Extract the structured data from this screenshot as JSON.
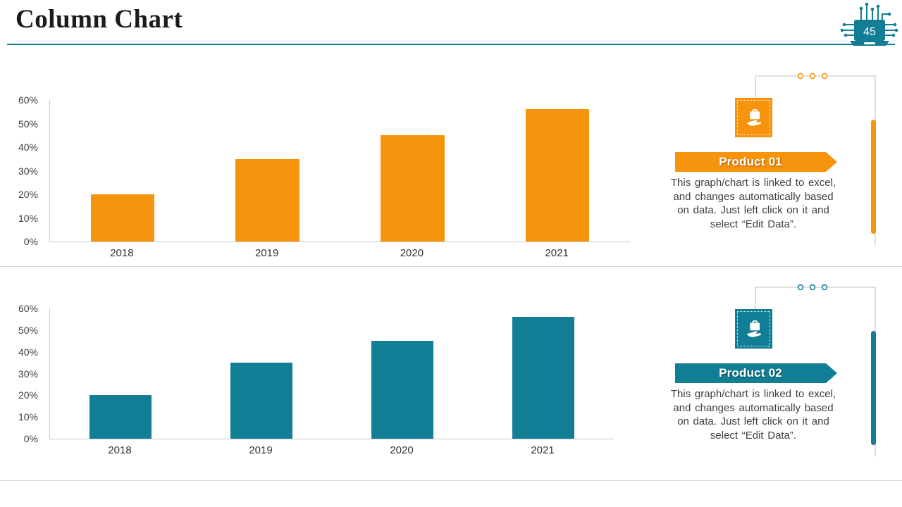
{
  "slide": {
    "title": "Column Chart",
    "page_number": "45"
  },
  "colors": {
    "orange": "#F7940D",
    "teal": "#117E95",
    "axis_line": "#C9C9C9",
    "divider": "#D8D8D8",
    "connector": "#BFBFBF",
    "body_text": "#3F3F3F",
    "title_text": "#1B1B1B"
  },
  "chart_data": [
    {
      "type": "bar",
      "name": "Product 01 column chart",
      "categories": [
        "2018",
        "2019",
        "2020",
        "2021"
      ],
      "values": [
        20,
        35,
        45,
        56
      ],
      "bar_color": "#F7940D",
      "title": "",
      "xlabel": "",
      "ylabel": "",
      "ylim": [
        0,
        60
      ],
      "yticks": [
        "0%",
        "10%",
        "20%",
        "30%",
        "40%",
        "50%",
        "60%"
      ],
      "grid": false,
      "legend_position": "none"
    },
    {
      "type": "bar",
      "name": "Product 02 column chart",
      "categories": [
        "2018",
        "2019",
        "2020",
        "2021"
      ],
      "values": [
        20,
        35,
        45,
        56
      ],
      "bar_color": "#117E95",
      "title": "",
      "xlabel": "",
      "ylabel": "",
      "ylim": [
        0,
        60
      ],
      "yticks": [
        "0%",
        "10%",
        "20%",
        "30%",
        "40%",
        "50%",
        "60%"
      ],
      "grid": false,
      "legend_position": "none"
    }
  ],
  "panels": [
    {
      "title": "Product 01",
      "description": "This graph/chart is linked to excel, and changes automatically based on data. Just left click on it and select “Edit Data”.",
      "accent": "#F7940D",
      "icon": "hand-holding-briefcase-icon"
    },
    {
      "title": "Product 02",
      "description": "This graph/chart is linked to excel, and changes automatically based on data. Just left click on it and select “Edit Data”.",
      "accent": "#117E95",
      "icon": "hand-holding-briefcase-icon"
    }
  ]
}
